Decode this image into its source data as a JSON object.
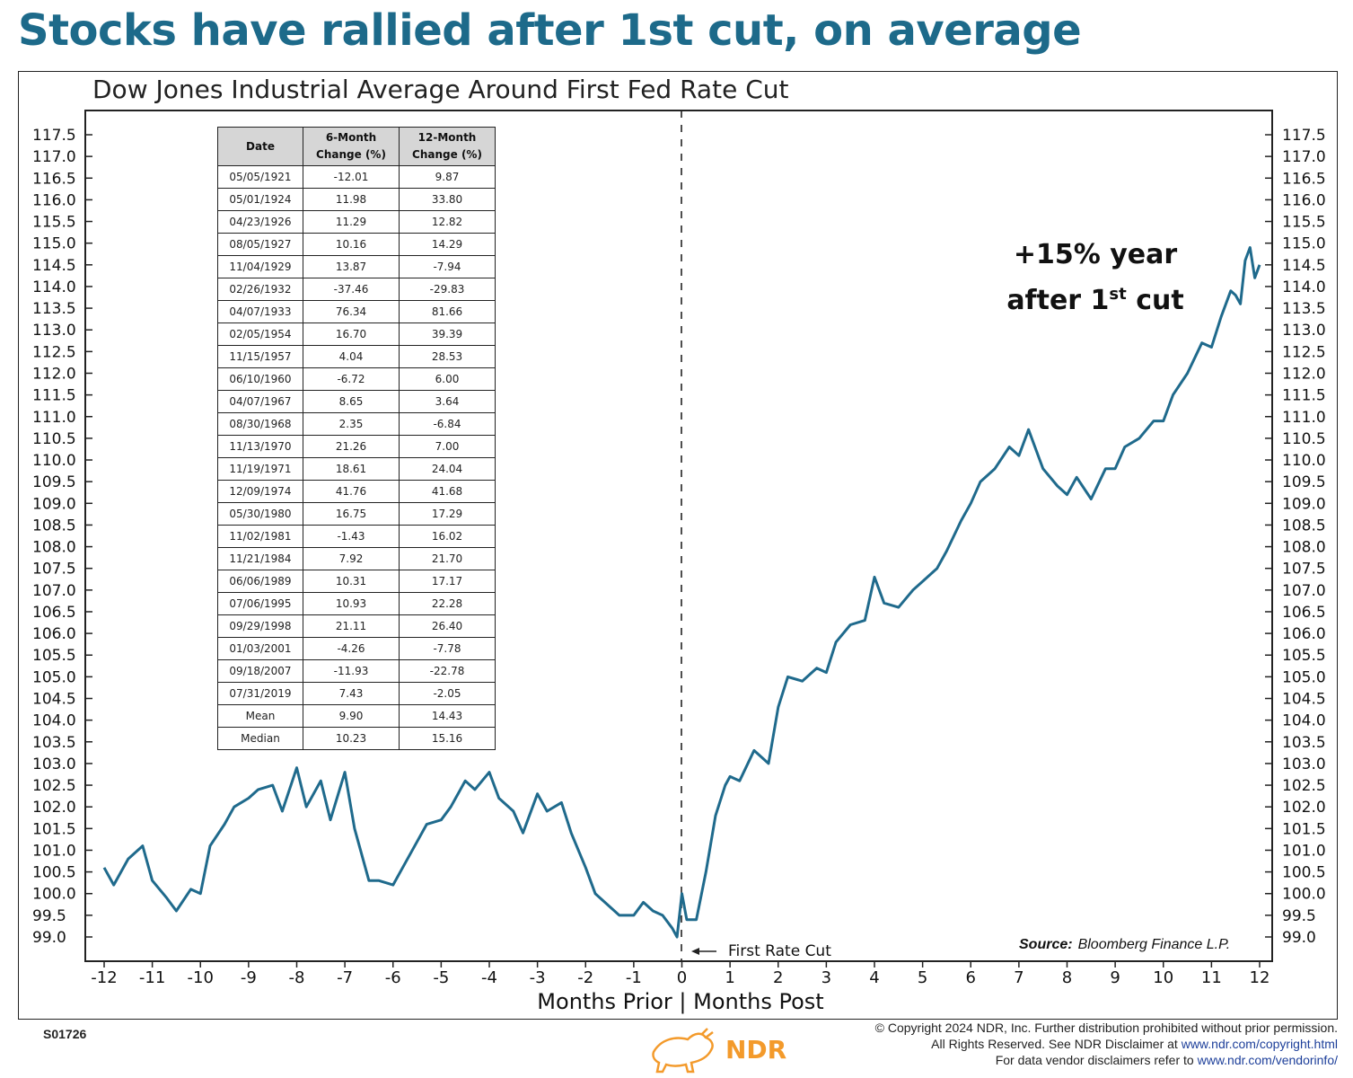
{
  "headline": "Stocks have rallied after 1st cut, on average",
  "chart_data": {
    "type": "line",
    "title": "Dow Jones Industrial Average Around First Fed Rate Cut",
    "xlabel": "Months Prior | Months Post",
    "ylabel": "",
    "xlim": [
      -12,
      12
    ],
    "ylim": [
      99,
      117.5
    ],
    "x_ticks": [
      "-12",
      "-11",
      "-10",
      "-9",
      "-8",
      "-7",
      "-6",
      "-5",
      "-4",
      "-3",
      "-2",
      "-1",
      "0",
      "1",
      "2",
      "3",
      "4",
      "5",
      "6",
      "7",
      "8",
      "9",
      "10",
      "11",
      "12"
    ],
    "y_ticks": [
      "117.5",
      "117.0",
      "116.5",
      "116.0",
      "115.5",
      "115.0",
      "114.5",
      "114.0",
      "113.5",
      "113.0",
      "112.5",
      "112.0",
      "111.5",
      "111.0",
      "110.5",
      "110.0",
      "109.5",
      "109.0",
      "108.5",
      "108.0",
      "107.5",
      "107.0",
      "106.5",
      "106.0",
      "105.5",
      "105.0",
      "104.5",
      "104.0",
      "103.5",
      "103.0",
      "102.5",
      "102.0",
      "101.5",
      "101.0",
      "100.5",
      "100.0",
      "99.5",
      "99.0"
    ],
    "series": [
      {
        "name": "Dow Jones Industrial Average (indexed)",
        "color": "#1f6a8c",
        "x": [
          -12,
          -11.8,
          -11.5,
          -11.2,
          -11,
          -10.7,
          -10.5,
          -10.2,
          -10,
          -9.8,
          -9.5,
          -9.3,
          -9,
          -8.8,
          -8.5,
          -8.3,
          -8,
          -7.8,
          -7.5,
          -7.3,
          -7,
          -6.8,
          -6.5,
          -6.3,
          -6,
          -5.8,
          -5.5,
          -5.3,
          -5,
          -4.8,
          -4.5,
          -4.3,
          -4,
          -3.8,
          -3.5,
          -3.3,
          -3,
          -2.8,
          -2.5,
          -2.3,
          -2,
          -1.8,
          -1.5,
          -1.3,
          -1,
          -0.8,
          -0.6,
          -0.4,
          -0.2,
          -0.1,
          0,
          0.1,
          0.3,
          0.5,
          0.7,
          0.9,
          1,
          1.2,
          1.5,
          1.8,
          2,
          2.2,
          2.5,
          2.8,
          3,
          3.2,
          3.5,
          3.8,
          4,
          4.2,
          4.5,
          4.8,
          5,
          5.3,
          5.5,
          5.8,
          6,
          6.2,
          6.5,
          6.8,
          7,
          7.2,
          7.5,
          7.8,
          8,
          8.2,
          8.5,
          8.8,
          9,
          9.2,
          9.5,
          9.8,
          10,
          10.2,
          10.5,
          10.8,
          11,
          11.2,
          11.4,
          11.5,
          11.6,
          11.7,
          11.8,
          11.9,
          12
        ],
        "values": [
          100.6,
          100.2,
          100.8,
          101.1,
          100.3,
          99.9,
          99.6,
          100.1,
          100.0,
          101.1,
          101.6,
          102.0,
          102.2,
          102.4,
          102.5,
          101.9,
          102.9,
          102.0,
          102.6,
          101.7,
          102.8,
          101.5,
          100.3,
          100.3,
          100.2,
          100.6,
          101.2,
          101.6,
          101.7,
          102.0,
          102.6,
          102.4,
          102.8,
          102.2,
          101.9,
          101.4,
          102.3,
          101.9,
          102.1,
          101.4,
          100.6,
          100.0,
          99.7,
          99.5,
          99.5,
          99.8,
          99.6,
          99.5,
          99.2,
          99.0,
          100.0,
          99.4,
          99.4,
          100.5,
          101.8,
          102.5,
          102.7,
          102.6,
          103.3,
          103.0,
          104.3,
          105.0,
          104.9,
          105.2,
          105.1,
          105.8,
          106.2,
          106.3,
          107.3,
          106.7,
          106.6,
          107.0,
          107.2,
          107.5,
          107.9,
          108.6,
          109.0,
          109.5,
          109.8,
          110.3,
          110.1,
          110.7,
          109.8,
          109.4,
          109.2,
          109.6,
          109.1,
          109.8,
          109.8,
          110.3,
          110.5,
          110.9,
          110.9,
          111.5,
          112.0,
          112.7,
          112.6,
          113.3,
          113.9,
          113.8,
          113.6,
          114.6,
          114.9,
          114.2,
          114.5
        ]
      }
    ],
    "annotations": {
      "cut_label": "First Rate Cut",
      "big_line1": "+15% year",
      "big_line2_pre": "after 1",
      "big_line2_sup": "st",
      "big_line2_post": " cut",
      "source_label": "Source:",
      "source_value": "Bloomberg Finance L.P."
    }
  },
  "table": {
    "headers": {
      "date": "Date",
      "six_a": "6-Month",
      "six_b": "Change (%)",
      "twelve_a": "12-Month",
      "twelve_b": "Change (%)"
    },
    "rows": [
      [
        "05/05/1921",
        "-12.01",
        "9.87"
      ],
      [
        "05/01/1924",
        "11.98",
        "33.80"
      ],
      [
        "04/23/1926",
        "11.29",
        "12.82"
      ],
      [
        "08/05/1927",
        "10.16",
        "14.29"
      ],
      [
        "11/04/1929",
        "13.87",
        "-7.94"
      ],
      [
        "02/26/1932",
        "-37.46",
        "-29.83"
      ],
      [
        "04/07/1933",
        "76.34",
        "81.66"
      ],
      [
        "02/05/1954",
        "16.70",
        "39.39"
      ],
      [
        "11/15/1957",
        "4.04",
        "28.53"
      ],
      [
        "06/10/1960",
        "-6.72",
        "6.00"
      ],
      [
        "04/07/1967",
        "8.65",
        "3.64"
      ],
      [
        "08/30/1968",
        "2.35",
        "-6.84"
      ],
      [
        "11/13/1970",
        "21.26",
        "7.00"
      ],
      [
        "11/19/1971",
        "18.61",
        "24.04"
      ],
      [
        "12/09/1974",
        "41.76",
        "41.68"
      ],
      [
        "05/30/1980",
        "16.75",
        "17.29"
      ],
      [
        "11/02/1981",
        "-1.43",
        "16.02"
      ],
      [
        "11/21/1984",
        "7.92",
        "21.70"
      ],
      [
        "06/06/1989",
        "10.31",
        "17.17"
      ],
      [
        "07/06/1995",
        "10.93",
        "22.28"
      ],
      [
        "09/29/1998",
        "21.11",
        "26.40"
      ],
      [
        "01/03/2001",
        "-4.26",
        "-7.78"
      ],
      [
        "09/18/2007",
        "-11.93",
        "-22.78"
      ],
      [
        "07/31/2019",
        "7.43",
        "-2.05"
      ],
      [
        "Mean",
        "9.90",
        "14.43"
      ],
      [
        "Median",
        "10.23",
        "15.16"
      ]
    ]
  },
  "footer": {
    "code": "S01726",
    "copyright_line1": "© Copyright 2024 NDR, Inc. Further distribution prohibited without prior permission.",
    "line2_text": "All Rights Reserved. See NDR Disclaimer at ",
    "line2_link": "www.ndr.com/copyright.html",
    "line3_text": "For data vendor disclaimers refer to ",
    "line3_link": "www.ndr.com/vendorinfo/",
    "logo_text": "NDR"
  },
  "colors": {
    "headline": "#1d6a8a",
    "line": "#1f6a8c",
    "logo": "#f39a2b",
    "link": "#1d3f9a"
  }
}
